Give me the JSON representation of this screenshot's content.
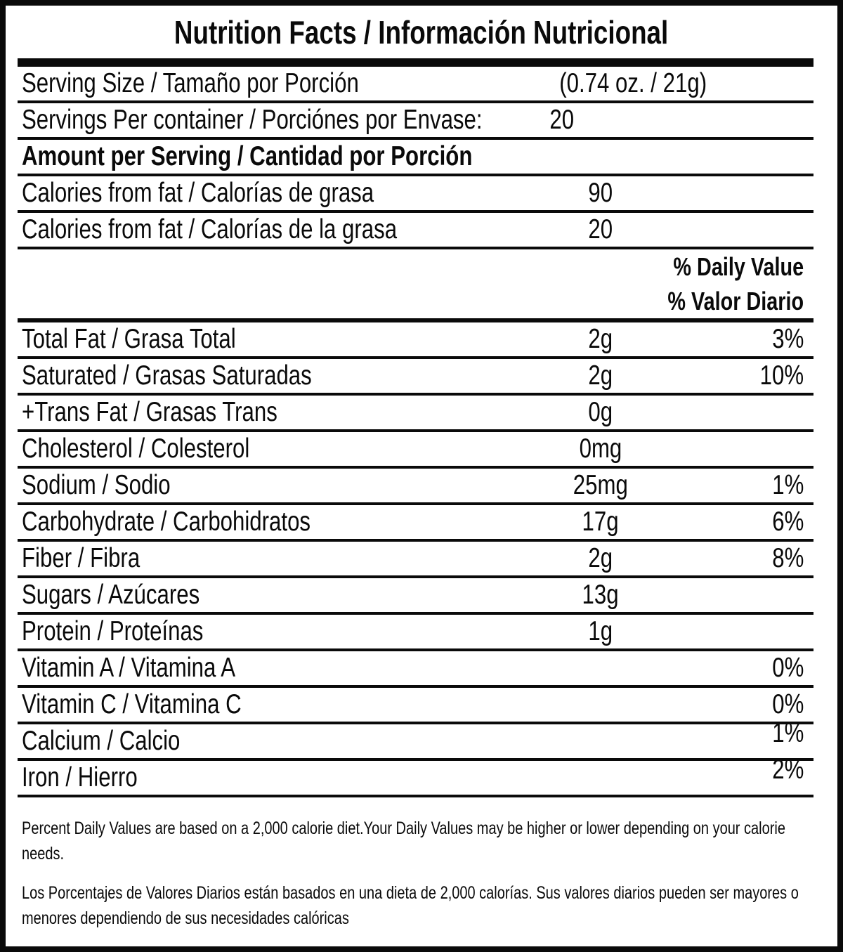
{
  "label": {
    "title": "Nutrition Facts / Información Nutricional",
    "daily_value_header_en": "% Daily Value",
    "daily_value_header_es": "% Valor Diario",
    "rows": [
      {
        "label": "Serving Size / Tamaño por Porción",
        "amount": "(0.74 oz. / 21g)",
        "pct": ""
      },
      {
        "label": "Servings Per container / Porciónes por Envase:",
        "amount": "20",
        "pct": ""
      },
      {
        "label": "Amount per Serving / Cantidad por Porción",
        "amount": "",
        "pct": ""
      },
      {
        "label": "Calories from fat / Calorías de grasa",
        "amount": "90",
        "pct": ""
      },
      {
        "label": "Calories from fat / Calorías de la grasa",
        "amount": "20",
        "pct": ""
      },
      {
        "label": "Total Fat / Grasa Total",
        "amount": "2g",
        "pct": "3%"
      },
      {
        "label": "Saturated / Grasas Saturadas",
        "amount": "2g",
        "pct": "10%"
      },
      {
        "label": "+Trans Fat / Grasas Trans",
        "amount": "0g",
        "pct": ""
      },
      {
        "label": "Cholesterol / Colesterol",
        "amount": "0mg",
        "pct": ""
      },
      {
        "label": "Sodium / Sodio",
        "amount": "25mg",
        "pct": "1%"
      },
      {
        "label": "Carbohydrate / Carbohidratos",
        "amount": "17g",
        "pct": "6%"
      },
      {
        "label": "Fiber / Fibra",
        "amount": "2g",
        "pct": "8%"
      },
      {
        "label": "Sugars / Azúcares",
        "amount": "13g",
        "pct": ""
      },
      {
        "label": "Protein / Proteínas",
        "amount": "1g",
        "pct": ""
      },
      {
        "label": "Vitamin A / Vitamina A",
        "amount": "",
        "pct": "0%"
      },
      {
        "label": "Vitamin C / Vitamina C",
        "amount": "",
        "pct": "0%"
      },
      {
        "label": "Calcium / Calcio",
        "amount": "",
        "pct": "1%"
      },
      {
        "label": "Iron / Hierro",
        "amount": "",
        "pct": "2%"
      }
    ],
    "footnote_en": "Percent Daily Values are based on a 2,000 calorie diet.Your Daily Values may be higher or lower depending on your calorie needs.",
    "footnote_es": "Los Porcentajes de Valores Diarios están basados en una dieta de 2,000 calorías. Sus valores diarios pueden ser mayores o menores dependiendo de sus necesidades calóricas"
  },
  "colors": {
    "ink": "#0a0a0a",
    "background": "#ffffff"
  }
}
